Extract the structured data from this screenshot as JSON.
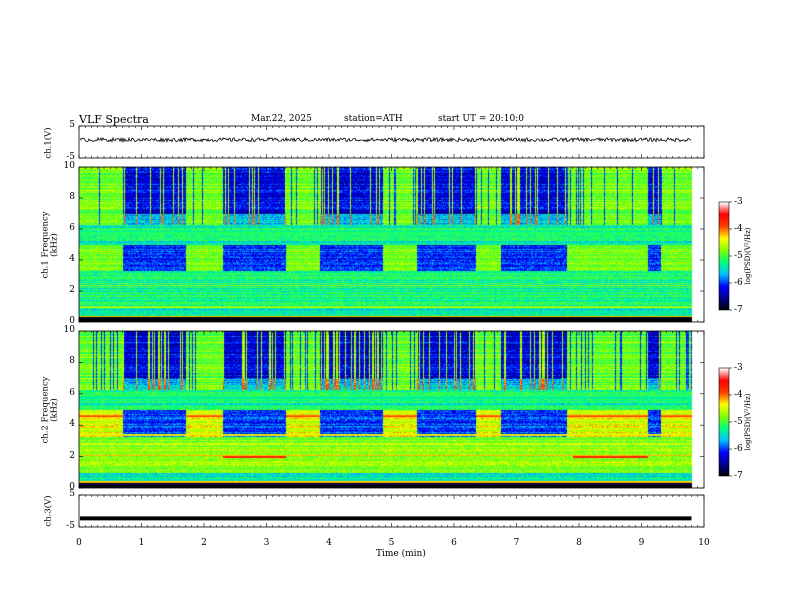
{
  "header": {
    "title": "VLF Spectra",
    "date": "Mar.22, 2025",
    "station": "station=ATH",
    "start_time": "start UT =  20:10:0"
  },
  "chart_data": [
    {
      "type": "line",
      "panel": "ch1-waveform",
      "ylabel": "ch.1(V)",
      "y_ticks": [
        "5",
        "-5"
      ],
      "ylim": [
        -5,
        5
      ],
      "xlim": [
        0,
        10
      ],
      "mean_level": 0.7,
      "noise_amplitude": 0.6,
      "x_end": 9.8
    },
    {
      "type": "heatmap",
      "panel": "ch1-spectrogram",
      "ylabel": "ch.1 Frequency (kHz)",
      "y_ticks": [
        "10",
        "8",
        "6",
        "4",
        "2",
        "0"
      ],
      "ylim": [
        0,
        10
      ],
      "xlim": [
        0,
        10
      ],
      "x_end": 9.8,
      "quiet_intervals": [
        [
          0.7,
          1.7
        ],
        [
          2.3,
          3.3
        ],
        [
          3.85,
          4.85
        ],
        [
          5.4,
          6.35
        ],
        [
          6.75,
          7.8
        ],
        [
          9.1,
          9.3
        ]
      ],
      "colorbar": {
        "label": "log(PSD)(V²/Hz)",
        "ticks": [
          "-3",
          "-4",
          "-5",
          "-6",
          "-7"
        ],
        "range": [
          -7,
          -3
        ]
      }
    },
    {
      "type": "heatmap",
      "panel": "ch2-spectrogram",
      "ylabel": "ch.2 Frequency (kHz)",
      "y_ticks": [
        "10",
        "8",
        "6",
        "4",
        "2",
        "0"
      ],
      "ylim": [
        0,
        10
      ],
      "xlim": [
        0,
        10
      ],
      "x_end": 9.8,
      "quiet_intervals": [
        [
          0.7,
          1.7
        ],
        [
          2.3,
          3.3
        ],
        [
          3.85,
          4.85
        ],
        [
          5.4,
          6.35
        ],
        [
          6.75,
          7.8
        ],
        [
          9.1,
          9.3
        ]
      ],
      "colorbar": {
        "label": "log(PSD)(V²/Hz)",
        "ticks": [
          "-3",
          "-4",
          "-5",
          "-6",
          "-7"
        ],
        "range": [
          -7,
          -3
        ]
      }
    },
    {
      "type": "line",
      "panel": "ch3-waveform",
      "ylabel": "ch.3(V)",
      "y_ticks": [
        "5",
        "-5"
      ],
      "ylim": [
        -5,
        5
      ],
      "xlim": [
        0,
        10
      ],
      "mean_level": -2.3,
      "x_end": 9.8
    }
  ],
  "x_axis": {
    "label": "Time (min)",
    "ticks": [
      "0",
      "1",
      "2",
      "3",
      "4",
      "5",
      "6",
      "7",
      "8",
      "9",
      "10"
    ]
  },
  "colorbar_labels": {
    "ch1": "log(PSD)(V²/Hz)",
    "ch2": "log(PSD)(V²/Hz)",
    "ticks": [
      "-3",
      "-4",
      "-5",
      "-6",
      "-7"
    ]
  },
  "colors": {
    "line": "#000000",
    "axis": "#000000",
    "colormap": [
      "#000000",
      "#00008b",
      "#0000ff",
      "#00bfff",
      "#00ff80",
      "#7fff00",
      "#ffff00",
      "#ff4000",
      "#ff0000",
      "#ffffff"
    ]
  }
}
